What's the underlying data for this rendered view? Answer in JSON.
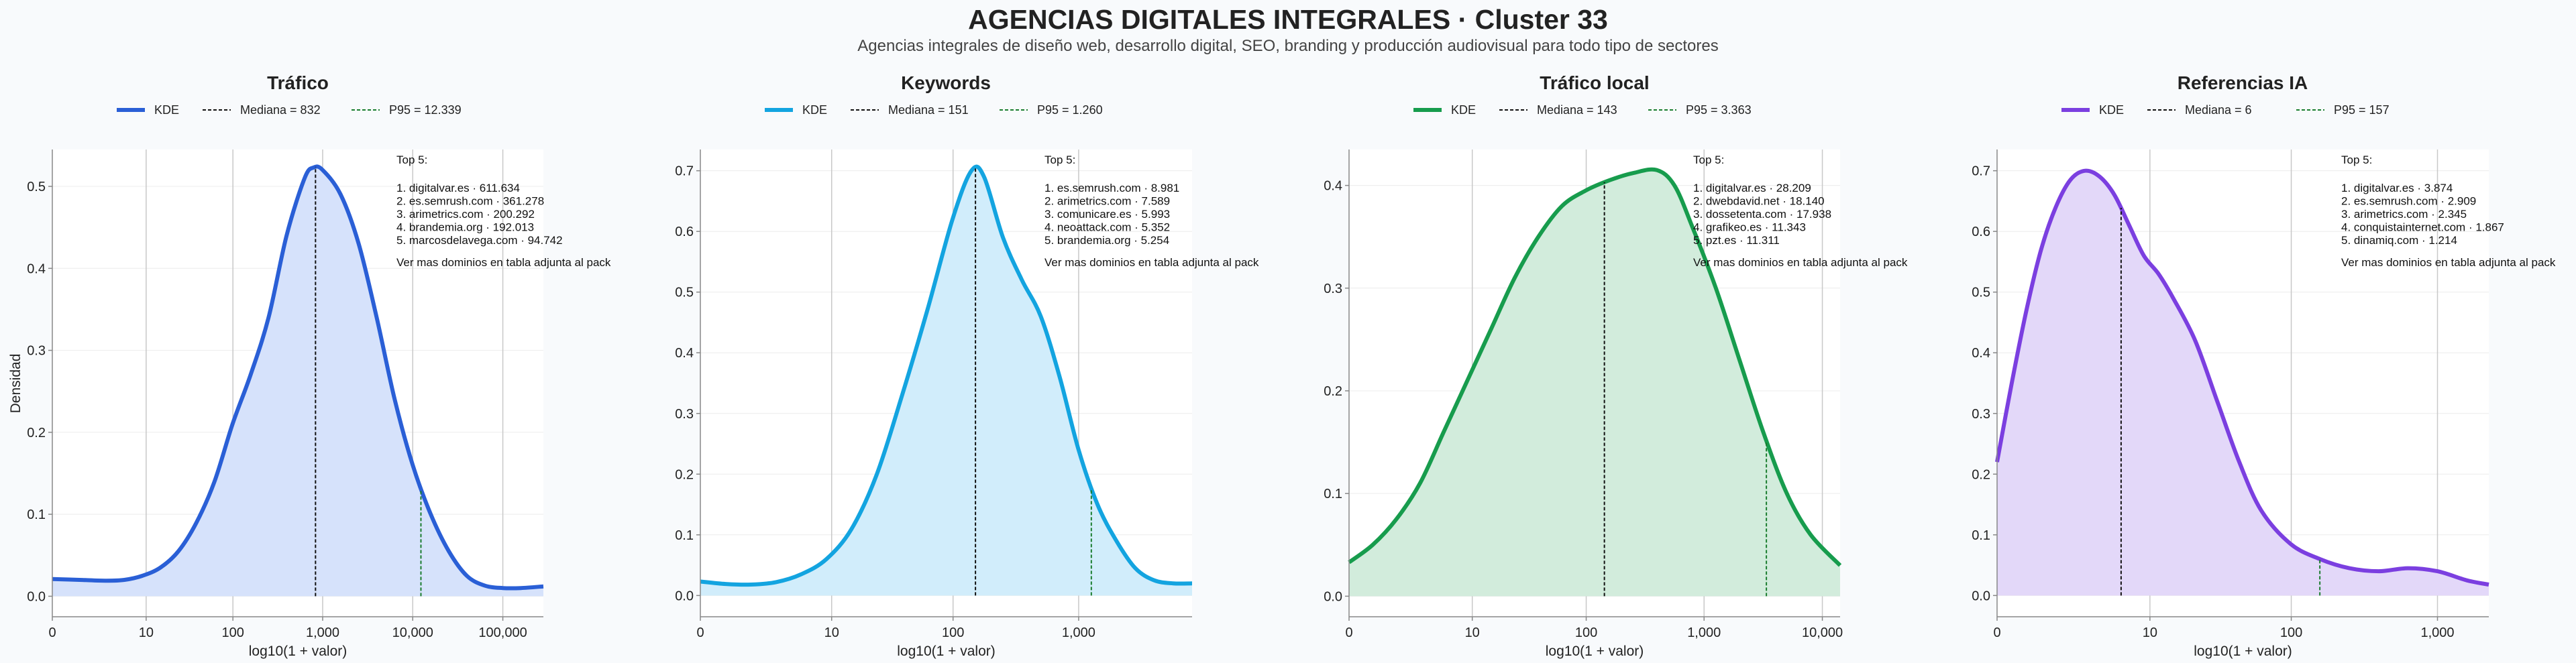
{
  "header": {
    "title": "AGENCIAS DIGITALES INTEGRALES · Cluster 33",
    "subtitle": "Agencias integrales de diseño web, desarrollo digital, SEO, branding y producción audiovisual para todo tipo de sectores"
  },
  "chart_data": [
    {
      "type": "area",
      "title": "Tráfico",
      "xlabel": "log10(1 + valor)",
      "ylabel": "Densidad",
      "color": "#2a5fd6",
      "fill": "#d6e2fb",
      "xlim": [
        0,
        5.45
      ],
      "ylim": [
        -0.025,
        0.545
      ],
      "xticks": [
        {
          "v": 0,
          "label": "0"
        },
        {
          "v": 1.0414,
          "label": "10"
        },
        {
          "v": 2.0043,
          "label": "100"
        },
        {
          "v": 3.0004,
          "label": "1,000"
        },
        {
          "v": 4.0,
          "label": "10,000"
        },
        {
          "v": 5.0,
          "label": "100,000"
        }
      ],
      "yticks": [
        {
          "v": 0.0,
          "label": "0.0"
        },
        {
          "v": 0.1,
          "label": "0.1"
        },
        {
          "v": 0.2,
          "label": "0.2"
        },
        {
          "v": 0.3,
          "label": "0.3"
        },
        {
          "v": 0.4,
          "label": "0.4"
        },
        {
          "v": 0.5,
          "label": "0.5"
        }
      ],
      "legend": {
        "kde": "KDE",
        "median": "Mediana = 832",
        "p95": "P95 = 12.339"
      },
      "median_x": 2.921,
      "p95_x": 4.091,
      "kde": [
        [
          0,
          0.021
        ],
        [
          0.3,
          0.02
        ],
        [
          0.6,
          0.019
        ],
        [
          0.8,
          0.02
        ],
        [
          1.0,
          0.025
        ],
        [
          1.2,
          0.035
        ],
        [
          1.4,
          0.055
        ],
        [
          1.6,
          0.09
        ],
        [
          1.8,
          0.14
        ],
        [
          2.0,
          0.21
        ],
        [
          2.2,
          0.27
        ],
        [
          2.4,
          0.34
        ],
        [
          2.6,
          0.44
        ],
        [
          2.8,
          0.51
        ],
        [
          2.9,
          0.523
        ],
        [
          3.0,
          0.52
        ],
        [
          3.2,
          0.49
        ],
        [
          3.4,
          0.43
        ],
        [
          3.6,
          0.34
        ],
        [
          3.8,
          0.24
        ],
        [
          4.0,
          0.16
        ],
        [
          4.2,
          0.1
        ],
        [
          4.4,
          0.055
        ],
        [
          4.6,
          0.025
        ],
        [
          4.8,
          0.013
        ],
        [
          5.0,
          0.01
        ],
        [
          5.2,
          0.01
        ],
        [
          5.45,
          0.012
        ]
      ],
      "top": {
        "heading": "Top 5:",
        "items": [
          "1. digitalvar.es · 611.634",
          "2. es.semrush.com · 361.278",
          "3. arimetrics.com · 200.292",
          "4. brandemia.org · 192.013",
          "5. marcosdelavega.com · 94.742"
        ],
        "note": "Ver mas dominios en tabla adjunta al pack"
      }
    },
    {
      "type": "area",
      "title": "Keywords",
      "xlabel": "log10(1 + valor)",
      "ylabel": "",
      "color": "#13a4e0",
      "fill": "#d1edfb",
      "xlim": [
        0,
        3.9
      ],
      "ylim": [
        -0.035,
        0.735
      ],
      "xticks": [
        {
          "v": 0,
          "label": "0"
        },
        {
          "v": 1.0414,
          "label": "10"
        },
        {
          "v": 2.0043,
          "label": "100"
        },
        {
          "v": 3.0004,
          "label": "1,000"
        }
      ],
      "yticks": [
        {
          "v": 0.0,
          "label": "0.0"
        },
        {
          "v": 0.1,
          "label": "0.1"
        },
        {
          "v": 0.2,
          "label": "0.2"
        },
        {
          "v": 0.3,
          "label": "0.3"
        },
        {
          "v": 0.4,
          "label": "0.4"
        },
        {
          "v": 0.5,
          "label": "0.5"
        },
        {
          "v": 0.6,
          "label": "0.6"
        },
        {
          "v": 0.7,
          "label": "0.7"
        }
      ],
      "legend": {
        "kde": "KDE",
        "median": "Mediana = 151",
        "p95": "P95 = 1.260"
      },
      "median_x": 2.182,
      "p95_x": 3.101,
      "kde": [
        [
          0,
          0.023
        ],
        [
          0.2,
          0.019
        ],
        [
          0.4,
          0.018
        ],
        [
          0.6,
          0.022
        ],
        [
          0.8,
          0.035
        ],
        [
          1.0,
          0.06
        ],
        [
          1.2,
          0.11
        ],
        [
          1.4,
          0.2
        ],
        [
          1.6,
          0.33
        ],
        [
          1.8,
          0.47
        ],
        [
          2.0,
          0.62
        ],
        [
          2.15,
          0.7
        ],
        [
          2.25,
          0.69
        ],
        [
          2.4,
          0.59
        ],
        [
          2.55,
          0.52
        ],
        [
          2.7,
          0.46
        ],
        [
          2.85,
          0.36
        ],
        [
          3.0,
          0.24
        ],
        [
          3.15,
          0.15
        ],
        [
          3.3,
          0.09
        ],
        [
          3.45,
          0.045
        ],
        [
          3.6,
          0.025
        ],
        [
          3.75,
          0.02
        ],
        [
          3.9,
          0.02
        ]
      ],
      "top": {
        "heading": "Top 5:",
        "items": [
          "1. es.semrush.com · 8.981",
          "2. arimetrics.com · 7.589",
          "3. comunicare.es · 5.993",
          "4. neoattack.com · 5.352",
          "5. brandemia.org · 5.254"
        ],
        "note": "Ver mas dominios en tabla adjunta al pack"
      }
    },
    {
      "type": "area",
      "title": "Tráfico local",
      "xlabel": "log10(1 + valor)",
      "ylabel": "",
      "color": "#179c4d",
      "fill": "#d2ecdc",
      "xlim": [
        0,
        4.15
      ],
      "ylim": [
        -0.02,
        0.435
      ],
      "xticks": [
        {
          "v": 0,
          "label": "0"
        },
        {
          "v": 1.0414,
          "label": "10"
        },
        {
          "v": 2.0043,
          "label": "100"
        },
        {
          "v": 3.0004,
          "label": "1,000"
        },
        {
          "v": 4.0,
          "label": "10,000"
        }
      ],
      "yticks": [
        {
          "v": 0.0,
          "label": "0.0"
        },
        {
          "v": 0.1,
          "label": "0.1"
        },
        {
          "v": 0.2,
          "label": "0.2"
        },
        {
          "v": 0.3,
          "label": "0.3"
        },
        {
          "v": 0.4,
          "label": "0.4"
        }
      ],
      "legend": {
        "kde": "KDE",
        "median": "Mediana = 143",
        "p95": "P95 = 3.363"
      },
      "median_x": 2.158,
      "p95_x": 3.527,
      "kde": [
        [
          0,
          0.033
        ],
        [
          0.2,
          0.05
        ],
        [
          0.4,
          0.075
        ],
        [
          0.6,
          0.11
        ],
        [
          0.8,
          0.16
        ],
        [
          1.0,
          0.21
        ],
        [
          1.2,
          0.26
        ],
        [
          1.4,
          0.31
        ],
        [
          1.6,
          0.35
        ],
        [
          1.8,
          0.38
        ],
        [
          2.0,
          0.395
        ],
        [
          2.2,
          0.405
        ],
        [
          2.4,
          0.412
        ],
        [
          2.6,
          0.415
        ],
        [
          2.75,
          0.4
        ],
        [
          2.9,
          0.36
        ],
        [
          3.1,
          0.3
        ],
        [
          3.3,
          0.23
        ],
        [
          3.5,
          0.16
        ],
        [
          3.7,
          0.1
        ],
        [
          3.9,
          0.06
        ],
        [
          4.15,
          0.03
        ]
      ],
      "top": {
        "heading": "Top 5:",
        "items": [
          "1. digitalvar.es · 28.209",
          "2. dwebdavid.net · 18.140",
          "3. dossetenta.com · 17.938",
          "4. grafikeo.es · 11.343",
          "5. pzt.es · 11.311"
        ],
        "note": "Ver mas dominios en tabla adjunta al pack"
      }
    },
    {
      "type": "area",
      "title": "Referencias IA",
      "xlabel": "log10(1 + valor)",
      "ylabel": "",
      "color": "#7b3fe0",
      "fill": "#e3d8f9",
      "xlim": [
        0,
        3.35
      ],
      "ylim": [
        -0.035,
        0.735
      ],
      "xticks": [
        {
          "v": 0,
          "label": "0"
        },
        {
          "v": 1.0414,
          "label": "10"
        },
        {
          "v": 2.0043,
          "label": "100"
        },
        {
          "v": 3.0004,
          "label": "1,000"
        }
      ],
      "yticks": [
        {
          "v": 0.0,
          "label": "0.0"
        },
        {
          "v": 0.1,
          "label": "0.1"
        },
        {
          "v": 0.2,
          "label": "0.2"
        },
        {
          "v": 0.3,
          "label": "0.3"
        },
        {
          "v": 0.4,
          "label": "0.4"
        },
        {
          "v": 0.5,
          "label": "0.5"
        },
        {
          "v": 0.6,
          "label": "0.6"
        },
        {
          "v": 0.7,
          "label": "0.7"
        }
      ],
      "legend": {
        "kde": "KDE",
        "median": "Mediana = 6",
        "p95": "P95 = 157"
      },
      "median_x": 0.845,
      "p95_x": 2.199,
      "kde": [
        [
          0,
          0.22
        ],
        [
          0.1,
          0.35
        ],
        [
          0.2,
          0.47
        ],
        [
          0.3,
          0.57
        ],
        [
          0.4,
          0.64
        ],
        [
          0.5,
          0.685
        ],
        [
          0.6,
          0.7
        ],
        [
          0.7,
          0.69
        ],
        [
          0.8,
          0.66
        ],
        [
          0.9,
          0.61
        ],
        [
          1.0,
          0.56
        ],
        [
          1.1,
          0.53
        ],
        [
          1.2,
          0.49
        ],
        [
          1.35,
          0.42
        ],
        [
          1.5,
          0.32
        ],
        [
          1.65,
          0.22
        ],
        [
          1.8,
          0.14
        ],
        [
          2.0,
          0.085
        ],
        [
          2.2,
          0.06
        ],
        [
          2.4,
          0.045
        ],
        [
          2.6,
          0.04
        ],
        [
          2.8,
          0.045
        ],
        [
          3.0,
          0.04
        ],
        [
          3.2,
          0.025
        ],
        [
          3.35,
          0.018
        ]
      ],
      "top": {
        "heading": "Top 5:",
        "items": [
          "1. digitalvar.es · 3.874",
          "2. es.semrush.com · 2.909",
          "3. arimetrics.com · 2.345",
          "4. conquistainternet.com · 1.867",
          "5. dinamiq.com · 1.214"
        ],
        "note": "Ver mas dominios en tabla adjunta al pack"
      }
    }
  ]
}
